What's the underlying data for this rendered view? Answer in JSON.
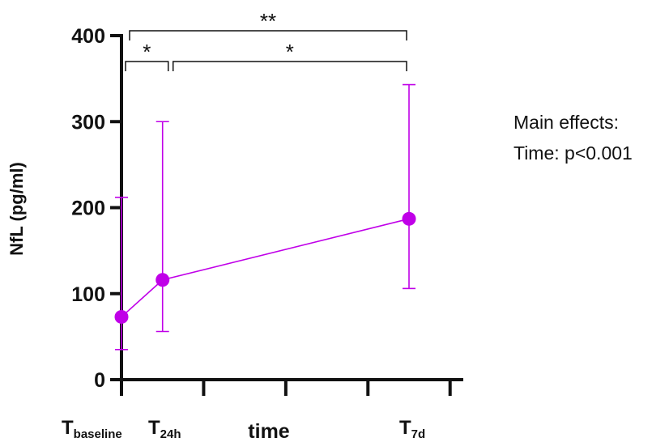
{
  "chart_data": {
    "type": "line",
    "ylabel": "NfL (pg/ml)",
    "xlabel": "time",
    "ylim": [
      0,
      400
    ],
    "yticks": [
      0,
      100,
      200,
      300,
      400
    ],
    "categories": [
      {
        "main": "T",
        "sub": "baseline"
      },
      {
        "main": "T",
        "sub": "24h"
      },
      {
        "main": "T",
        "sub": "7d"
      }
    ],
    "series": [
      {
        "color": "#c000e8",
        "points": [
          {
            "x": 0,
            "y": 73,
            "err_low": 35,
            "err_high": 212
          },
          {
            "x": 24,
            "y": 116,
            "err_low": 56,
            "err_high": 300
          },
          {
            "x": 168,
            "y": 187,
            "err_low": 106,
            "err_high": 343
          }
        ]
      }
    ],
    "significance": [
      {
        "from": 0,
        "to": 1,
        "label": "*"
      },
      {
        "from": 1,
        "to": 2,
        "label": "*"
      },
      {
        "from": 0,
        "to": 2,
        "label": "**"
      }
    ]
  },
  "notes": {
    "line1": "Main effects:",
    "line2": "Time: p<0.001"
  },
  "colors": {
    "series": "#c000e8",
    "axis": "#111111"
  }
}
